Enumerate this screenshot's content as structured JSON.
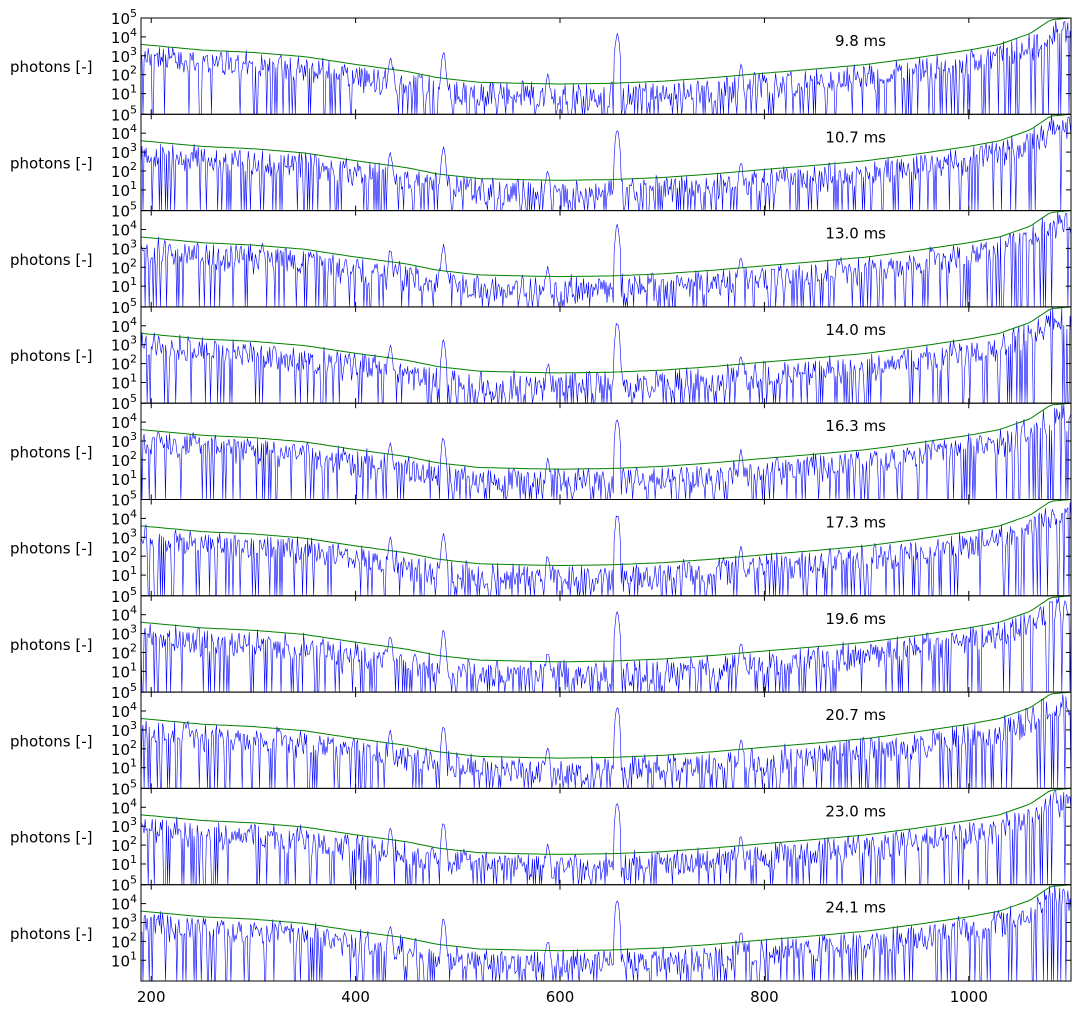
{
  "chart_data": {
    "type": "line",
    "yscale": "log",
    "ylim": [
      0.8,
      100000
    ],
    "xlim": [
      190,
      1100
    ],
    "ylabel": "photons [-]",
    "xticks": [
      200,
      400,
      600,
      800,
      1000
    ],
    "yticks": [
      {
        "value": 10,
        "base": "10",
        "exp": "1"
      },
      {
        "value": 100,
        "base": "10",
        "exp": "2"
      },
      {
        "value": 1000,
        "base": "10",
        "exp": "3"
      },
      {
        "value": 10000,
        "base": "10",
        "exp": "4"
      },
      {
        "value": 100000,
        "base": "10",
        "exp": "5"
      }
    ],
    "series_colors": {
      "spectrum": "#0000ff",
      "envelope": "#008000"
    },
    "panels": [
      {
        "label": "9.8 ms"
      },
      {
        "label": "10.7 ms"
      },
      {
        "label": "13.0 ms"
      },
      {
        "label": "14.0 ms"
      },
      {
        "label": "16.3 ms"
      },
      {
        "label": "17.3 ms"
      },
      {
        "label": "19.6 ms"
      },
      {
        "label": "20.7 ms"
      },
      {
        "label": "23.0 ms"
      },
      {
        "label": "24.1 ms"
      }
    ],
    "envelope": {
      "x": [
        190,
        250,
        300,
        350,
        400,
        450,
        480,
        520,
        560,
        600,
        650,
        700,
        750,
        800,
        850,
        900,
        950,
        1000,
        1030,
        1060,
        1080,
        1100
      ],
      "y": [
        4000,
        2000,
        1500,
        900,
        350,
        150,
        70,
        40,
        35,
        32,
        35,
        45,
        70,
        120,
        200,
        350,
        800,
        2000,
        4000,
        15000,
        80000,
        100000
      ]
    },
    "spectrum": {
      "step": 1,
      "peaks": [
        {
          "x": 486,
          "y": 1500
        },
        {
          "x": 434,
          "y": 800
        },
        {
          "x": 656,
          "y": 15000
        },
        {
          "x": 777,
          "y": 300
        },
        {
          "x": 390,
          "y": 200
        },
        {
          "x": 588,
          "y": 100
        }
      ]
    }
  }
}
